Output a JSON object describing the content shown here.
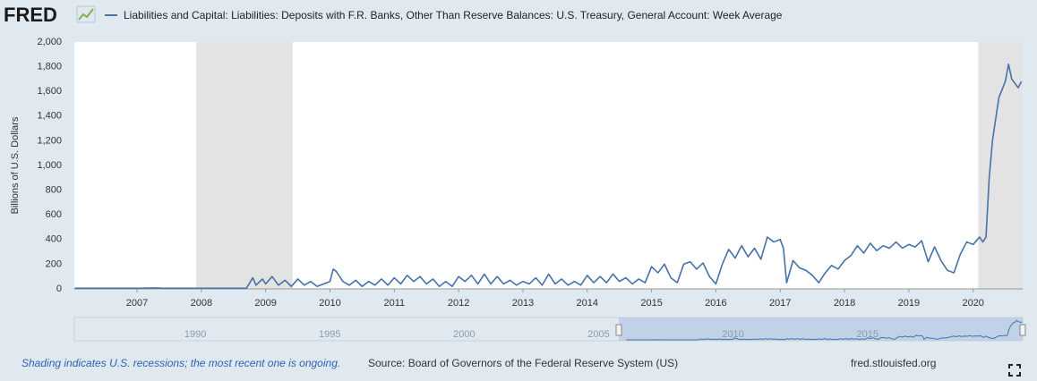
{
  "logo": "FRED",
  "footer": {
    "note": "Shading indicates U.S. recessions; the most recent one is ongoing.",
    "source": "Source: Board of Governors of the Federal Reserve System (US)",
    "site": "fred.stlouisfed.org"
  },
  "chart_data": {
    "type": "line",
    "ylabel": "Billions of U.S. Dollars",
    "xlim": [
      2006.025,
      2020.77
    ],
    "xticks": [
      2007,
      2008,
      2009,
      2010,
      2011,
      2012,
      2013,
      2014,
      2015,
      2016,
      2017,
      2018,
      2019,
      2020
    ],
    "ylim": [
      0,
      2000
    ],
    "yticks": [
      0,
      {
        "value": 200,
        "label": "200"
      },
      400,
      600,
      800,
      {
        "value": 1000,
        "label": "1,000"
      },
      {
        "value": 1200,
        "label": "1,200"
      },
      {
        "value": 1400,
        "label": "1,400"
      },
      {
        "value": 1600,
        "label": "1,600"
      },
      {
        "value": 1800,
        "label": "1,800"
      },
      {
        "value": 2000,
        "label": "2,000"
      }
    ],
    "grid": false,
    "recessions": [
      [
        2007.92,
        2009.42
      ],
      [
        2020.08,
        2020.77
      ]
    ],
    "x": [
      2006.03,
      2007.0,
      2007.3,
      2007.4,
      2008.0,
      2008.7,
      2008.8,
      2008.85,
      2008.95,
      2009.0,
      2009.1,
      2009.2,
      2009.3,
      2009.4,
      2009.5,
      2009.6,
      2009.7,
      2009.8,
      2009.9,
      2010.0,
      2010.05,
      2010.1,
      2010.2,
      2010.3,
      2010.4,
      2010.5,
      2010.6,
      2010.7,
      2010.8,
      2010.9,
      2011.0,
      2011.1,
      2011.2,
      2011.3,
      2011.4,
      2011.5,
      2011.6,
      2011.7,
      2011.8,
      2011.9,
      2012.0,
      2012.1,
      2012.2,
      2012.3,
      2012.4,
      2012.5,
      2012.6,
      2012.7,
      2012.8,
      2012.9,
      2013.0,
      2013.1,
      2013.2,
      2013.3,
      2013.4,
      2013.5,
      2013.6,
      2013.7,
      2013.8,
      2013.9,
      2014.0,
      2014.1,
      2014.2,
      2014.3,
      2014.4,
      2014.5,
      2014.6,
      2014.7,
      2014.8,
      2014.9,
      2015.0,
      2015.1,
      2015.2,
      2015.3,
      2015.4,
      2015.5,
      2015.6,
      2015.7,
      2015.8,
      2015.9,
      2016.0,
      2016.1,
      2016.2,
      2016.3,
      2016.4,
      2016.5,
      2016.6,
      2016.7,
      2016.8,
      2016.9,
      2017.0,
      2017.05,
      2017.1,
      2017.2,
      2017.3,
      2017.4,
      2017.5,
      2017.6,
      2017.7,
      2017.8,
      2017.9,
      2018.0,
      2018.1,
      2018.2,
      2018.3,
      2018.4,
      2018.5,
      2018.6,
      2018.7,
      2018.8,
      2018.9,
      2019.0,
      2019.1,
      2019.2,
      2019.3,
      2019.4,
      2019.5,
      2019.6,
      2019.7,
      2019.8,
      2019.9,
      2020.0,
      2020.1,
      2020.15,
      2020.2,
      2020.25,
      2020.3,
      2020.4,
      2020.5,
      2020.55,
      2020.6,
      2020.7,
      2020.75
    ],
    "series": [
      {
        "name": "Liabilities and Capital: Liabilities: Deposits with F.R. Banks, Other Than Reserve Balances: U.S. Treasury, General Account: Week Average",
        "color": "#4572a7",
        "values": [
          5,
          5,
          8,
          5,
          5,
          5,
          90,
          30,
          80,
          40,
          100,
          30,
          70,
          20,
          80,
          30,
          60,
          20,
          40,
          60,
          160,
          140,
          60,
          30,
          70,
          20,
          60,
          30,
          80,
          30,
          90,
          40,
          110,
          60,
          100,
          40,
          80,
          20,
          60,
          20,
          100,
          60,
          110,
          40,
          120,
          40,
          100,
          40,
          70,
          30,
          60,
          40,
          90,
          30,
          120,
          40,
          80,
          30,
          60,
          30,
          110,
          50,
          100,
          50,
          120,
          60,
          90,
          40,
          80,
          50,
          180,
          130,
          200,
          90,
          50,
          200,
          220,
          160,
          210,
          100,
          40,
          200,
          320,
          250,
          350,
          260,
          330,
          240,
          420,
          380,
          400,
          330,
          50,
          230,
          170,
          150,
          110,
          50,
          130,
          190,
          160,
          230,
          270,
          350,
          290,
          370,
          310,
          350,
          330,
          380,
          330,
          360,
          340,
          390,
          220,
          340,
          230,
          150,
          130,
          280,
          380,
          360,
          420,
          380,
          420,
          900,
          1200,
          1550,
          1680,
          1820,
          1700,
          1630,
          1680
        ]
      }
    ],
    "navigator": {
      "xlim": [
        1985.5,
        2020.77
      ],
      "xticks": [
        1990,
        1995,
        2000,
        2005,
        2010,
        2015
      ]
    }
  }
}
